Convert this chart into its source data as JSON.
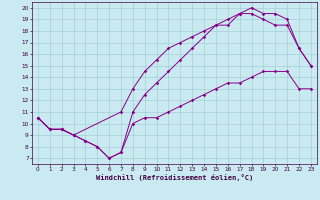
{
  "xlabel": "Windchill (Refroidissement éolien,°C)",
  "bg_color": "#c8eaf0",
  "line_color": "#880088",
  "grid_color": "#a0c8d0",
  "spine_color": "#440044",
  "tick_color": "#440044",
  "xlim": [
    -0.5,
    23.5
  ],
  "ylim": [
    6.5,
    20.5
  ],
  "yticks": [
    7,
    8,
    9,
    10,
    11,
    12,
    13,
    14,
    15,
    16,
    17,
    18,
    19,
    20
  ],
  "xticks": [
    0,
    1,
    2,
    3,
    4,
    5,
    6,
    7,
    8,
    9,
    10,
    11,
    12,
    13,
    14,
    15,
    16,
    17,
    18,
    19,
    20,
    21,
    22,
    23
  ],
  "line1_x": [
    0,
    1,
    2,
    3,
    4,
    5,
    6,
    7,
    8,
    9,
    10,
    11,
    12,
    13,
    14,
    15,
    16,
    17,
    18,
    19,
    20,
    21,
    22,
    23
  ],
  "line1_y": [
    10.5,
    9.5,
    9.5,
    9.0,
    8.5,
    8.0,
    7.0,
    7.5,
    10.0,
    10.5,
    10.5,
    11.0,
    11.5,
    12.0,
    12.5,
    13.0,
    13.5,
    13.5,
    14.0,
    14.5,
    14.5,
    14.5,
    13.0,
    13.0
  ],
  "line2_x": [
    0,
    1,
    2,
    3,
    4,
    5,
    6,
    7,
    8,
    9,
    10,
    11,
    12,
    13,
    14,
    15,
    16,
    17,
    18,
    19,
    20,
    21,
    22,
    23
  ],
  "line2_y": [
    10.5,
    9.5,
    9.5,
    9.0,
    8.5,
    8.0,
    7.0,
    7.5,
    11.0,
    12.5,
    13.5,
    14.5,
    15.5,
    16.5,
    17.5,
    18.5,
    19.0,
    19.5,
    19.5,
    19.0,
    18.5,
    18.5,
    16.5,
    15.0
  ],
  "line3_x": [
    0,
    1,
    2,
    3,
    7,
    8,
    9,
    10,
    11,
    12,
    13,
    14,
    15,
    16,
    17,
    18,
    19,
    20,
    21,
    22,
    23
  ],
  "line3_y": [
    10.5,
    9.5,
    9.5,
    9.0,
    11.0,
    13.0,
    14.5,
    15.5,
    16.5,
    17.0,
    17.5,
    18.0,
    18.5,
    18.5,
    19.5,
    20.0,
    19.5,
    19.5,
    19.0,
    16.5,
    15.0
  ],
  "xlabel_fontsize": 5.0,
  "tick_fontsize": 4.2,
  "linewidth": 0.7,
  "markersize": 1.8
}
